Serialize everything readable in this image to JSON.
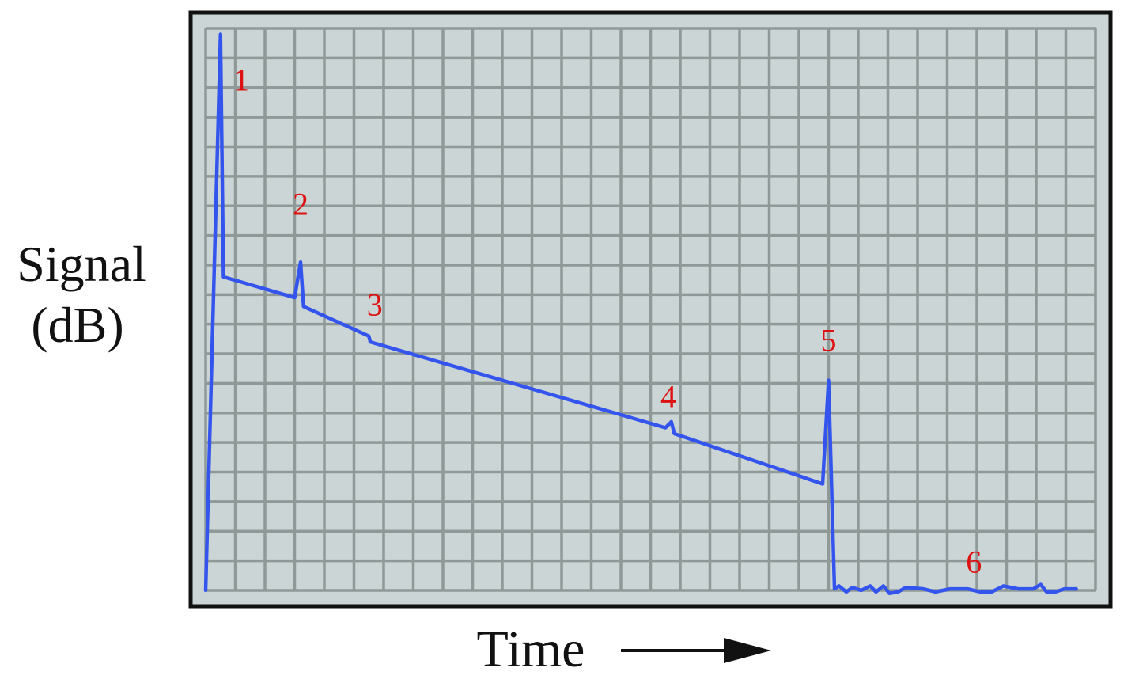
{
  "chart_data": {
    "type": "line",
    "title": "",
    "ylabel_line1": "Signal",
    "ylabel_line2": "(dB)",
    "xlabel": "Time",
    "xlabel_arrow": "right-arrow",
    "grid": true,
    "axis_tick_labels": false,
    "xlim": [
      0,
      30
    ],
    "ylim": [
      0,
      19
    ],
    "colors": {
      "background": "#ccd5d5",
      "grid": "#8f9a98",
      "frame": "#111111",
      "trace": "#3355ee",
      "event_labels": "#dd1111",
      "axis_text": "#111111"
    },
    "series": [
      {
        "points": [
          [
            0.0,
            0.0
          ],
          [
            0.5,
            18.8
          ],
          [
            0.6,
            10.6
          ],
          [
            3.0,
            9.9
          ],
          [
            3.2,
            11.1
          ],
          [
            3.3,
            9.6
          ],
          [
            5.5,
            8.6
          ],
          [
            5.55,
            8.4
          ],
          [
            15.5,
            5.5
          ],
          [
            15.7,
            5.7
          ],
          [
            15.8,
            5.3
          ],
          [
            20.8,
            3.6
          ],
          [
            21.0,
            7.1
          ],
          [
            21.2,
            0.05
          ],
          [
            21.35,
            0.15
          ],
          [
            21.6,
            -0.05
          ],
          [
            21.8,
            0.1
          ],
          [
            22.1,
            0.0
          ],
          [
            22.4,
            0.15
          ],
          [
            22.6,
            -0.05
          ],
          [
            22.85,
            0.15
          ],
          [
            23.05,
            -0.1
          ],
          [
            23.35,
            -0.05
          ],
          [
            23.6,
            0.1
          ],
          [
            24.2,
            0.05
          ],
          [
            24.6,
            -0.05
          ],
          [
            25.1,
            0.05
          ],
          [
            25.7,
            0.05
          ],
          [
            26.1,
            -0.05
          ],
          [
            26.5,
            -0.05
          ],
          [
            26.9,
            0.15
          ],
          [
            27.4,
            0.05
          ],
          [
            27.9,
            0.05
          ],
          [
            28.15,
            0.2
          ],
          [
            28.35,
            -0.05
          ],
          [
            28.65,
            -0.05
          ],
          [
            28.95,
            0.05
          ],
          [
            29.35,
            0.05
          ]
        ]
      }
    ],
    "annotations": [
      {
        "text": "1",
        "x": 1.2,
        "y": 16.9
      },
      {
        "text": "2",
        "x": 3.2,
        "y": 12.7
      },
      {
        "text": "3",
        "x": 5.7,
        "y": 9.3
      },
      {
        "text": "4",
        "x": 15.6,
        "y": 6.2
      },
      {
        "text": "5",
        "x": 21.0,
        "y": 8.1
      },
      {
        "text": "6",
        "x": 25.9,
        "y": 0.6
      }
    ]
  }
}
